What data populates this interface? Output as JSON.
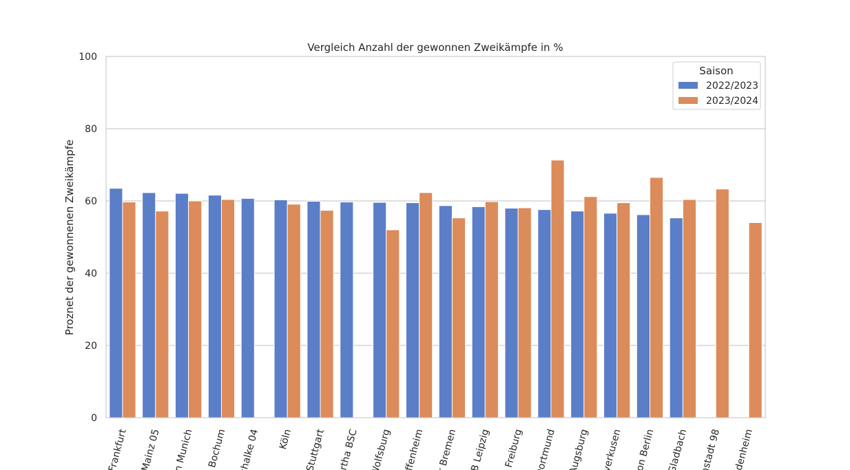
{
  "chart_data": {
    "type": "bar",
    "title": "Vergleich Anzahl der gewonnen Zweikämpfe in %",
    "xlabel": "",
    "ylabel": "Proznet der gewonnenen Zweikämpfe",
    "ylim": [
      0,
      100
    ],
    "yticks": [
      0,
      20,
      40,
      60,
      80,
      100
    ],
    "grid": true,
    "legend": {
      "title": "Saison",
      "placement": "top-right"
    },
    "categories": [
      "Frankfurt",
      "Mainz 05",
      "n Munich",
      "Bochum",
      "chalke 04",
      "Köln",
      "Stuttgart",
      "rtha BSC",
      "Wolfsburg",
      "ffenheim",
      "r Bremen",
      "B Leipzig",
      "Freiburg",
      "Oortmund",
      "Augsburg",
      "verkusen",
      "ion Berlin",
      "Gladbach",
      "nstadt 98",
      "idenheim"
    ],
    "series": [
      {
        "name": "2022/2023",
        "color": "#5b7ec8",
        "values": [
          63.5,
          62.3,
          62.1,
          61.6,
          60.7,
          60.3,
          59.9,
          59.7,
          59.6,
          59.5,
          58.7,
          58.4,
          58.0,
          57.6,
          57.2,
          56.6,
          56.2,
          55.3,
          null,
          null
        ]
      },
      {
        "name": "2023/2024",
        "color": "#dc8b5a",
        "values": [
          59.7,
          57.2,
          60.0,
          60.4,
          null,
          59.1,
          57.4,
          null,
          52.0,
          62.3,
          55.3,
          59.8,
          58.1,
          71.3,
          61.2,
          59.5,
          66.5,
          60.4,
          63.3,
          54.0
        ]
      }
    ]
  }
}
